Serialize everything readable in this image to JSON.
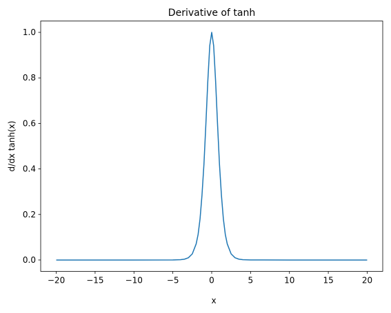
{
  "chart_data": {
    "type": "line",
    "title": "Derivative of tanh",
    "xlabel": "x",
    "ylabel": "d/dx tanh(x)",
    "xlim": [
      -22,
      22
    ],
    "ylim": [
      -0.05,
      1.05
    ],
    "xticks": [
      -20,
      -15,
      -10,
      -5,
      0,
      5,
      10,
      15,
      20
    ],
    "yticks": [
      0.0,
      0.2,
      0.4,
      0.6,
      0.8,
      1.0
    ],
    "xtick_labels": [
      "−20",
      "−15",
      "−10",
      "−5",
      "0",
      "5",
      "10",
      "15",
      "20"
    ],
    "ytick_labels": [
      "0.0",
      "0.2",
      "0.4",
      "0.6",
      "0.8",
      "1.0"
    ],
    "grid": false,
    "series": [
      {
        "color": "#1f77b4",
        "x": [
          -20,
          -10,
          -5,
          -4,
          -3.5,
          -3,
          -2.5,
          -2,
          -1.75,
          -1.5,
          -1.25,
          -1,
          -0.75,
          -0.5,
          -0.25,
          0,
          0.25,
          0.5,
          0.75,
          1,
          1.25,
          1.5,
          1.75,
          2,
          2.5,
          3,
          3.5,
          4,
          5,
          10,
          20
        ],
        "y": [
          0.0,
          0.0,
          0.0002,
          0.0013,
          0.0036,
          0.0099,
          0.0266,
          0.0707,
          0.1121,
          0.1807,
          0.2849,
          0.42,
          0.5972,
          0.7864,
          0.9416,
          1.0,
          0.9416,
          0.7864,
          0.5972,
          0.42,
          0.2849,
          0.1807,
          0.1121,
          0.0707,
          0.0266,
          0.0099,
          0.0036,
          0.0013,
          0.0002,
          0.0,
          0.0
        ]
      }
    ]
  }
}
